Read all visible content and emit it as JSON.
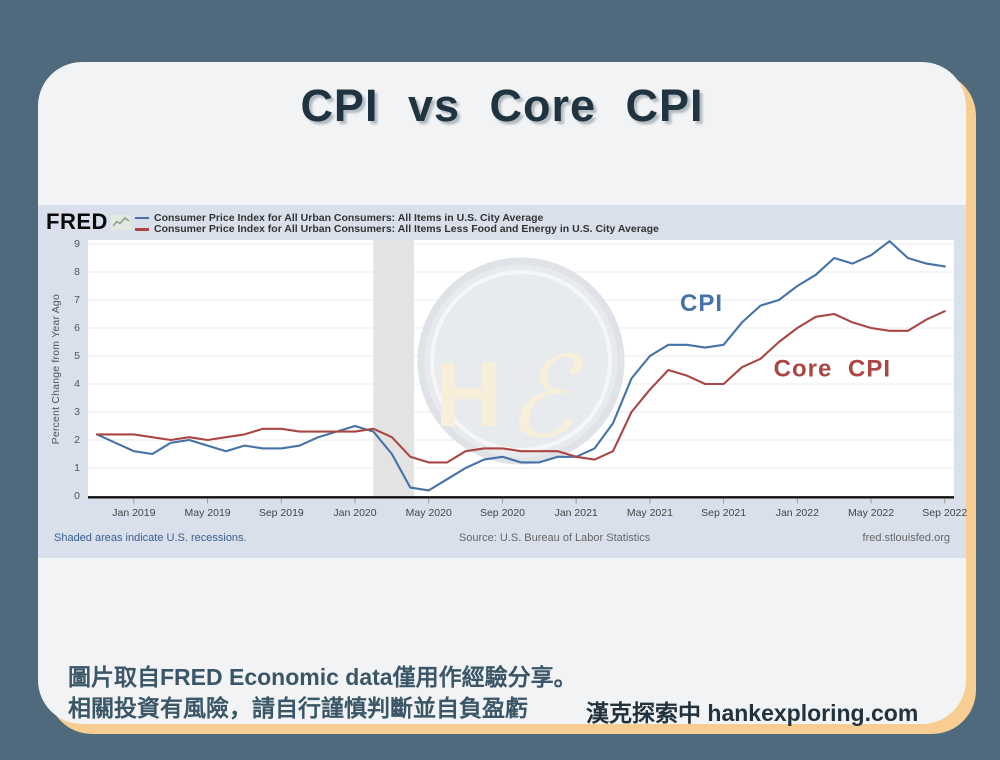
{
  "page": {
    "title": "CPI vs Core CPI",
    "disclaimer_line1": "圖片取自FRED Economic data僅用作經驗分享。",
    "disclaimer_line2": "相關投資有風險，請自行謹慎判斷並自負盈虧",
    "site_credit": "漢克探索中 hankexploring.com",
    "colors": {
      "background": "#4e6a7c",
      "card": "#f2f3f4",
      "card_shadow": "#f7cd92",
      "chart_background": "#d9e0ec",
      "title_text": "#1f3340"
    }
  },
  "fred": {
    "logo": "FRED",
    "legend": [
      {
        "label": "Consumer Price Index for All Urban Consumers: All Items in U.S. City Average",
        "color": "#4572a7"
      },
      {
        "label": "Consumer Price Index for All Urban Consumers: All Items Less Food and Energy in U.S. City Average",
        "color": "#aa4643"
      }
    ],
    "footer_left": "Shaded areas indicate U.S. recessions.",
    "footer_center": "Source: U.S. Bureau of Labor Statistics",
    "footer_right": "fred.stlouisfed.org"
  },
  "watermark": {
    "letter1": "H",
    "letter2": "ℰ",
    "color": "#f8eed6"
  },
  "chart_data": {
    "type": "line",
    "title": "",
    "xlabel": "",
    "ylabel": "Percent Change from Year Ago",
    "ylim": [
      0,
      9
    ],
    "yticks": [
      0,
      1,
      2,
      3,
      4,
      5,
      6,
      7,
      8,
      9
    ],
    "grid": "horizontal",
    "x_start_month": "2018-11",
    "x_end_month": "2022-09",
    "x_frequency": "monthly",
    "xticks": [
      {
        "i": 2,
        "label": "Jan 2019"
      },
      {
        "i": 6,
        "label": "May 2019"
      },
      {
        "i": 10,
        "label": "Sep 2019"
      },
      {
        "i": 14,
        "label": "Jan 2020"
      },
      {
        "i": 18,
        "label": "May 2020"
      },
      {
        "i": 22,
        "label": "Sep 2020"
      },
      {
        "i": 26,
        "label": "Jan 2021"
      },
      {
        "i": 30,
        "label": "May 2021"
      },
      {
        "i": 34,
        "label": "Sep 2021"
      },
      {
        "i": 38,
        "label": "Jan 2022"
      },
      {
        "i": 42,
        "label": "May 2022"
      },
      {
        "i": 46,
        "label": "Sep 2022"
      }
    ],
    "recession_band": {
      "from_month_index": 15,
      "to_month_index": 17.2,
      "note": "Feb 2020 - Apr 2020",
      "color": "#e3e3e3"
    },
    "series": [
      {
        "name": "CPI",
        "color": "#4572a7",
        "values": [
          2.2,
          1.9,
          1.6,
          1.5,
          1.9,
          2.0,
          1.8,
          1.6,
          1.8,
          1.7,
          1.7,
          1.8,
          2.1,
          2.3,
          2.5,
          2.3,
          1.5,
          0.3,
          0.2,
          0.6,
          1.0,
          1.3,
          1.4,
          1.2,
          1.2,
          1.4,
          1.4,
          1.7,
          2.6,
          4.2,
          5.0,
          5.4,
          5.4,
          5.3,
          5.4,
          6.2,
          6.8,
          7.0,
          7.5,
          7.9,
          8.5,
          8.3,
          8.6,
          9.1,
          8.5,
          8.3,
          8.2
        ]
      },
      {
        "name": "Core CPI",
        "color": "#aa4643",
        "values": [
          2.2,
          2.2,
          2.2,
          2.1,
          2.0,
          2.1,
          2.0,
          2.1,
          2.2,
          2.4,
          2.4,
          2.3,
          2.3,
          2.3,
          2.3,
          2.4,
          2.1,
          1.4,
          1.2,
          1.2,
          1.6,
          1.7,
          1.7,
          1.6,
          1.6,
          1.6,
          1.4,
          1.3,
          1.6,
          3.0,
          3.8,
          4.5,
          4.3,
          4.0,
          4.0,
          4.6,
          4.9,
          5.5,
          6.0,
          6.4,
          6.5,
          6.2,
          6.0,
          5.9,
          5.9,
          6.3,
          6.6
        ]
      }
    ],
    "annotations": [
      {
        "text": "CPI",
        "color": "#4572a7",
        "month_index": 32.8,
        "value": 6.9
      },
      {
        "text": "Core CPI",
        "color": "#aa4643",
        "month_index": 39.9,
        "value": 4.55
      }
    ],
    "legend_position": "top"
  }
}
